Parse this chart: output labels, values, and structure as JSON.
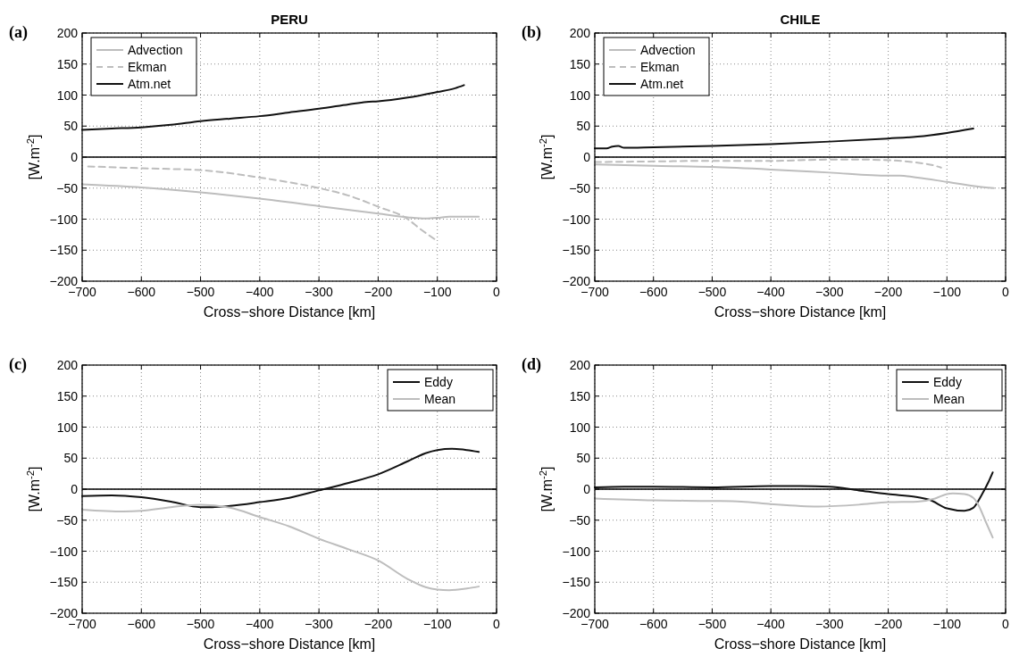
{
  "chart_data": [
    {
      "type": "line",
      "title": "PERU",
      "xlabel": "Cross−shore Distance [km]",
      "ylabel": "[W.m$^{-2}$]",
      "annotations": [
        "(a)"
      ],
      "xlim": [
        -700,
        0
      ],
      "ylim": [
        -200,
        200
      ],
      "xticks": [
        -700,
        -600,
        -500,
        -400,
        -300,
        -200,
        -100,
        0
      ],
      "yticks": [
        -200,
        -150,
        -100,
        -50,
        0,
        50,
        100,
        150,
        200
      ],
      "grid": true,
      "legend": "top left",
      "ref_lines": [
        {
          "axis": "y",
          "value": 0,
          "color": "#000000"
        }
      ],
      "series": [
        {
          "name": "Advection",
          "color": "#bdbdbd",
          "line_style": "solid",
          "x": [
            -700,
            -600,
            -500,
            -400,
            -300,
            -200,
            -150,
            -120,
            -100,
            -80,
            -50,
            -30
          ],
          "values": [
            -44,
            -49,
            -57,
            -67,
            -79,
            -91,
            -97,
            -99,
            -98,
            -96,
            -96,
            -96
          ]
        },
        {
          "name": "Ekman",
          "color": "#bdbdbd",
          "line_style": "dashed",
          "x": [
            -690,
            -600,
            -500,
            -400,
            -300,
            -250,
            -200,
            -150,
            -130,
            -105
          ],
          "values": [
            -15,
            -18,
            -21,
            -33,
            -50,
            -62,
            -80,
            -100,
            -115,
            -132
          ]
        },
        {
          "name": "Atm.net",
          "color": "#111111",
          "line_style": "solid",
          "x": [
            -700,
            -650,
            -600,
            -550,
            -500,
            -450,
            -400,
            -350,
            -300,
            -250,
            -220,
            -200,
            -150,
            -100,
            -70,
            -55
          ],
          "values": [
            44,
            46,
            48,
            52,
            58,
            62,
            66,
            72,
            78,
            85,
            89,
            90,
            96,
            105,
            111,
            116
          ]
        }
      ]
    },
    {
      "type": "line",
      "title": "CHILE",
      "xlabel": "Cross−shore Distance [km]",
      "ylabel": "[W.m$^{-2}$]",
      "annotations": [
        "(b)"
      ],
      "xlim": [
        -700,
        0
      ],
      "ylim": [
        -200,
        200
      ],
      "xticks": [
        -700,
        -600,
        -500,
        -400,
        -300,
        -200,
        -100,
        0
      ],
      "yticks": [
        -200,
        -150,
        -100,
        -50,
        0,
        50,
        100,
        150,
        200
      ],
      "grid": true,
      "legend": "top left",
      "ref_lines": [
        {
          "axis": "y",
          "value": 0,
          "color": "#000000"
        }
      ],
      "series": [
        {
          "name": "Advection",
          "color": "#bdbdbd",
          "line_style": "solid",
          "x": [
            -700,
            -600,
            -500,
            -400,
            -300,
            -200,
            -180,
            -150,
            -100,
            -50,
            -20
          ],
          "values": [
            -12,
            -14,
            -16,
            -20,
            -25,
            -30,
            -30,
            -33,
            -40,
            -47,
            -50
          ]
        },
        {
          "name": "Ekman",
          "color": "#bdbdbd",
          "line_style": "dashed",
          "x": [
            -700,
            -600,
            -500,
            -400,
            -300,
            -250,
            -200,
            -150,
            -120,
            -110
          ],
          "values": [
            -8,
            -7,
            -6,
            -6,
            -4,
            -4,
            -5,
            -9,
            -14,
            -17
          ]
        },
        {
          "name": "Atm.net",
          "color": "#111111",
          "line_style": "solid",
          "x": [
            -700,
            -680,
            -670,
            -660,
            -650,
            -600,
            -500,
            -400,
            -300,
            -200,
            -150,
            -100,
            -55
          ],
          "values": [
            14,
            14,
            17,
            18,
            15,
            16,
            18,
            21,
            25,
            30,
            33,
            39,
            46
          ]
        }
      ]
    },
    {
      "type": "line",
      "xlabel": "Cross−shore Distance [km]",
      "ylabel": "[W.m$^{-2}$]",
      "annotations": [
        "(c)"
      ],
      "xlim": [
        -700,
        0
      ],
      "ylim": [
        -200,
        200
      ],
      "xticks": [
        -700,
        -600,
        -500,
        -400,
        -300,
        -200,
        -100,
        0
      ],
      "yticks": [
        -200,
        -150,
        -100,
        -50,
        0,
        50,
        100,
        150,
        200
      ],
      "grid": true,
      "legend": "top right",
      "ref_lines": [
        {
          "axis": "y",
          "value": 0,
          "color": "#000000"
        }
      ],
      "series": [
        {
          "name": "Eddy",
          "color": "#111111",
          "line_style": "solid",
          "x": [
            -700,
            -650,
            -600,
            -550,
            -500,
            -480,
            -450,
            -400,
            -350,
            -300,
            -250,
            -200,
            -150,
            -120,
            -100,
            -75,
            -50,
            -30
          ],
          "values": [
            -11,
            -10,
            -13,
            -20,
            -29,
            -29,
            -27,
            -21,
            -14,
            -2,
            10,
            24,
            45,
            58,
            63,
            65,
            63,
            60
          ]
        },
        {
          "name": "Mean",
          "color": "#bdbdbd",
          "line_style": "solid",
          "x": [
            -700,
            -630,
            -600,
            -550,
            -500,
            -450,
            -400,
            -350,
            -300,
            -250,
            -200,
            -150,
            -120,
            -100,
            -80,
            -50,
            -30
          ],
          "values": [
            -33,
            -36,
            -35,
            -29,
            -25,
            -30,
            -45,
            -60,
            -80,
            -97,
            -115,
            -145,
            -158,
            -162,
            -163,
            -160,
            -157
          ]
        }
      ]
    },
    {
      "type": "line",
      "xlabel": "Cross−shore Distance [km]",
      "ylabel": "[W.m$^{-2}$]",
      "annotations": [
        "(d)"
      ],
      "xlim": [
        -700,
        0
      ],
      "ylim": [
        -200,
        200
      ],
      "xticks": [
        -700,
        -600,
        -500,
        -400,
        -300,
        -200,
        -100,
        0
      ],
      "yticks": [
        -200,
        -150,
        -100,
        -50,
        0,
        50,
        100,
        150,
        200
      ],
      "grid": true,
      "legend": "top right",
      "ref_lines": [
        {
          "axis": "y",
          "value": 0,
          "color": "#000000"
        }
      ],
      "series": [
        {
          "name": "Eddy",
          "color": "#111111",
          "line_style": "solid",
          "x": [
            -700,
            -650,
            -600,
            -500,
            -400,
            -350,
            -300,
            -250,
            -200,
            -150,
            -130,
            -100,
            -70,
            -55,
            -40,
            -30,
            -22
          ],
          "values": [
            3,
            4,
            4,
            3,
            5,
            5,
            4,
            -2,
            -8,
            -13,
            -17,
            -31,
            -35,
            -30,
            -8,
            10,
            27
          ]
        },
        {
          "name": "Mean",
          "color": "#bdbdbd",
          "line_style": "solid",
          "x": [
            -700,
            -600,
            -500,
            -450,
            -400,
            -320,
            -250,
            -200,
            -150,
            -120,
            -100,
            -90,
            -70,
            -55,
            -45,
            -35,
            -22
          ],
          "values": [
            -15,
            -18,
            -19,
            -20,
            -24,
            -28,
            -25,
            -21,
            -20,
            -15,
            -8,
            -7,
            -8,
            -14,
            -28,
            -50,
            -78
          ]
        }
      ]
    }
  ]
}
